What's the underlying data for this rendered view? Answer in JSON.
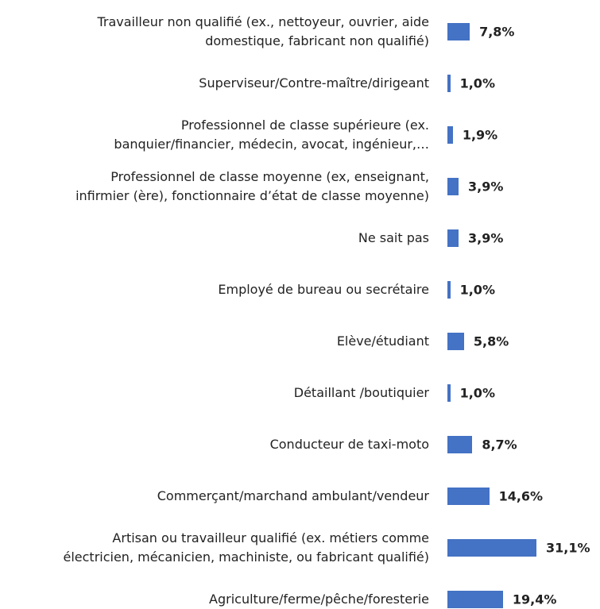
{
  "chart_data": {
    "type": "bar",
    "orientation": "horizontal",
    "color": "#4472c4",
    "categories": [
      "Travailleur non qualifié (ex., nettoyeur, ouvrier, aide\ndomestique, fabricant non qualifié)",
      "Superviseur/Contre-maître/dirigeant",
      "Professionnel de classe supérieure (ex.\nbanquier/financier, médecin, avocat, ingénieur,…",
      "Professionnel de classe moyenne (ex, enseignant,\ninfirmier (ère), fonctionnaire d’état de classe moyenne)",
      "Ne sait pas",
      "Employé de bureau ou secrétaire",
      "Elève/étudiant",
      "Détaillant /boutiquier",
      "Conducteur de taxi-moto",
      "Commerçant/marchand ambulant/vendeur",
      "Artisan ou travailleur qualifié (ex. métiers comme\nélectricien, mécanicien, machiniste, ou fabricant qualifié)",
      "Agriculture/ferme/pêche/foresterie"
    ],
    "values": [
      7.8,
      1.0,
      1.9,
      3.9,
      3.9,
      1.0,
      5.8,
      1.0,
      8.7,
      14.6,
      31.1,
      19.4
    ],
    "value_labels": [
      "7,8%",
      "1,0%",
      "1,9%",
      "3,9%",
      "3,9%",
      "1,0%",
      "5,8%",
      "1,0%",
      "8,7%",
      "14,6%",
      "31,1%",
      "19,4%"
    ]
  }
}
